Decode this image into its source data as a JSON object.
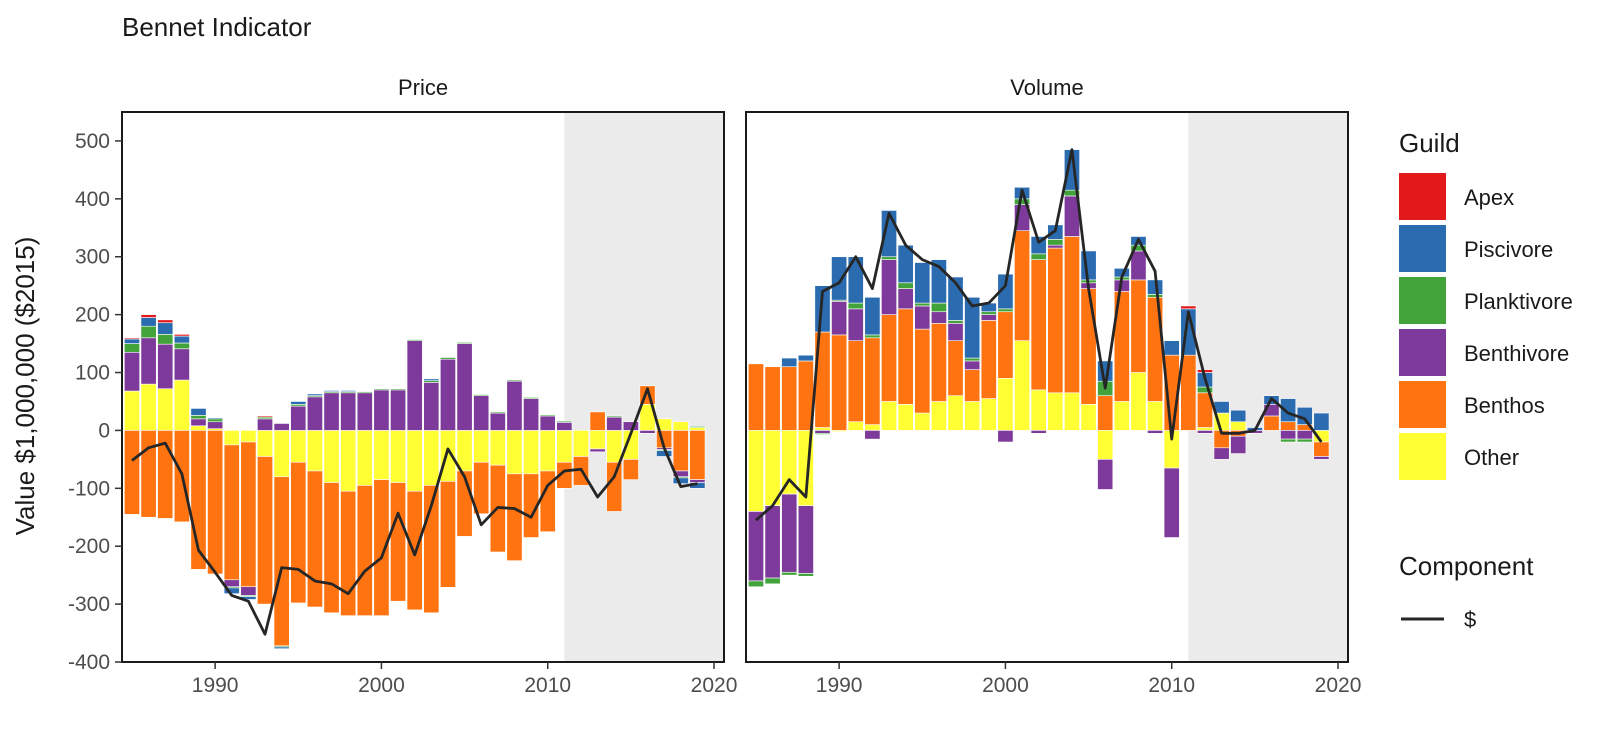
{
  "chart_data": {
    "type": "bar",
    "title": "Bennet Indicator",
    "ylabel": "Value $1,000,000 ($2015)",
    "xlabel": "",
    "ylim": [
      -400,
      550
    ],
    "xlim": [
      1984.4,
      2020.6
    ],
    "y_ticks": [
      -400,
      -300,
      -200,
      -100,
      0,
      100,
      200,
      300,
      400,
      500
    ],
    "y_tick_labels": [
      "-400",
      "-300",
      "-200",
      "-100",
      "0",
      "100",
      "200",
      "300",
      "400",
      "500"
    ],
    "x_ticks": [
      1990,
      2000,
      2010,
      2020
    ],
    "x_tick_labels": [
      "1990",
      "2000",
      "2010",
      "2020"
    ],
    "shaded_region_start": 2011,
    "guild_order": [
      "Other",
      "Benthos",
      "Benthivore",
      "Planktivore",
      "Piscivore",
      "Apex"
    ],
    "guild_colors": {
      "Apex": "#E31A1C",
      "Piscivore": "#2B6CB0",
      "Planktivore": "#41A33A",
      "Benthivore": "#7E3A9A",
      "Benthos": "#FF7410",
      "Other": "#FFFF33"
    },
    "line_color": "#262626",
    "shade_color": "#EBEBEB",
    "legend": {
      "fill_title": "Guild",
      "fill_items": [
        "Apex",
        "Piscivore",
        "Planktivore",
        "Benthivore",
        "Benthos",
        "Other"
      ],
      "line_title": "Component",
      "line_items": [
        "$"
      ]
    },
    "years": [
      1985,
      1986,
      1987,
      1988,
      1989,
      1990,
      1991,
      1992,
      1993,
      1994,
      1995,
      1996,
      1997,
      1998,
      1999,
      2000,
      2001,
      2002,
      2003,
      2004,
      2005,
      2006,
      2007,
      2008,
      2009,
      2010,
      2011,
      2012,
      2013,
      2014,
      2015,
      2016,
      2017,
      2018,
      2019
    ],
    "panels": [
      {
        "label": "Price",
        "series": [
          {
            "name": "Other",
            "values": [
              68,
              80,
              72,
              87,
              8,
              3,
              -25,
              -20,
              -45,
              -80,
              -55,
              -70,
              -90,
              -105,
              -95,
              -85,
              -90,
              -105,
              -95,
              -88,
              -70,
              -55,
              -60,
              -75,
              -75,
              -70,
              -55,
              -45,
              -32,
              -55,
              -50,
              45,
              20,
              15,
              5
            ]
          },
          {
            "name": "Benthos",
            "values": [
              -145,
              -150,
              -152,
              -158,
              -240,
              -248,
              -233,
              -250,
              -255,
              -292,
              -243,
              -235,
              -225,
              -215,
              -225,
              -235,
              -205,
              -205,
              -220,
              -183,
              -113,
              -89,
              -150,
              -150,
              -110,
              -105,
              -45,
              -50,
              32,
              -85,
              -35,
              32,
              -30,
              -70,
              -85
            ]
          },
          {
            "name": "Benthivore",
            "values": [
              67,
              80,
              77,
              54,
              12,
              12,
              -12,
              -15,
              20,
              12,
              42,
              58,
              65,
              65,
              65,
              70,
              70,
              155,
              83,
              123,
              150,
              60,
              30,
              85,
              55,
              25,
              14,
              0,
              -5,
              23,
              15,
              -5,
              -3,
              -10,
              -5
            ]
          },
          {
            "name": "Planktivore",
            "values": [
              15,
              20,
              17,
              10,
              6,
              5,
              -2,
              -2,
              3,
              -2,
              3,
              2,
              2,
              2,
              2,
              2,
              2,
              2,
              3,
              3,
              2,
              2,
              2,
              2,
              2,
              2,
              2,
              0,
              0,
              2,
              0,
              0,
              -2,
              -2,
              2
            ]
          },
          {
            "name": "Piscivore",
            "values": [
              8,
              15,
              20,
              12,
              12,
              2,
              -10,
              -5,
              0,
              -3,
              5,
              3,
              2,
              2,
              0,
              0,
              0,
              0,
              3,
              0,
              0,
              0,
              0,
              0,
              0,
              0,
              0,
              0,
              0,
              0,
              0,
              0,
              -10,
              -10,
              -10
            ]
          },
          {
            "name": "Apex",
            "values": [
              2,
              5,
              5,
              3,
              0,
              0,
              0,
              0,
              2,
              0,
              0,
              0,
              0,
              0,
              0,
              0,
              0,
              0,
              0,
              0,
              0,
              0,
              0,
              0,
              0,
              0,
              0,
              0,
              0,
              0,
              0,
              0,
              0,
              0,
              0
            ]
          }
        ],
        "line": [
          -52,
          -30,
          -22,
          -75,
          -207,
          -245,
          -285,
          -295,
          -352,
          -237,
          -240,
          -260,
          -265,
          -282,
          -243,
          -220,
          -143,
          -215,
          -130,
          -32,
          -80,
          -163,
          -133,
          -135,
          -150,
          -95,
          -70,
          -67,
          -115,
          -80,
          -5,
          72,
          -30,
          -97,
          -92
        ]
      },
      {
        "label": "Volume",
        "series": [
          {
            "name": "Other",
            "values": [
              -140,
              -130,
              -110,
              -130,
              5,
              -2,
              15,
              10,
              50,
              45,
              30,
              50,
              60,
              50,
              55,
              90,
              155,
              70,
              65,
              65,
              45,
              -50,
              50,
              100,
              50,
              -65,
              0,
              5,
              30,
              15,
              0,
              0,
              0,
              0,
              -20
            ]
          },
          {
            "name": "Benthos",
            "values": [
              115,
              110,
              110,
              120,
              165,
              165,
              140,
              150,
              150,
              165,
              145,
              135,
              95,
              55,
              135,
              115,
              190,
              225,
              250,
              270,
              200,
              60,
              190,
              160,
              180,
              130,
              130,
              60,
              -30,
              -10,
              0,
              25,
              15,
              10,
              -25
            ]
          },
          {
            "name": "Benthivore",
            "values": [
              -120,
              -125,
              -135,
              -117,
              -5,
              58,
              55,
              -15,
              95,
              35,
              40,
              20,
              30,
              15,
              10,
              -20,
              45,
              -5,
              5,
              70,
              10,
              -52,
              20,
              50,
              -5,
              -120,
              0,
              -5,
              -20,
              -30,
              -5,
              20,
              -15,
              -15,
              -5
            ]
          },
          {
            "name": "Planktivore",
            "values": [
              -10,
              -10,
              -5,
              -5,
              -2,
              2,
              10,
              5,
              5,
              10,
              5,
              15,
              5,
              5,
              5,
              5,
              10,
              10,
              10,
              10,
              5,
              25,
              5,
              10,
              5,
              0,
              0,
              10,
              0,
              0,
              0,
              0,
              -5,
              -5,
              0
            ]
          },
          {
            "name": "Piscivore",
            "values": [
              0,
              0,
              15,
              10,
              80,
              75,
              80,
              65,
              80,
              65,
              70,
              75,
              75,
              105,
              15,
              60,
              20,
              30,
              25,
              70,
              50,
              35,
              15,
              15,
              25,
              25,
              80,
              25,
              20,
              20,
              5,
              15,
              40,
              30,
              30
            ]
          },
          {
            "name": "Apex",
            "values": [
              0,
              0,
              0,
              0,
              0,
              0,
              0,
              0,
              0,
              0,
              0,
              0,
              0,
              0,
              0,
              0,
              0,
              0,
              0,
              0,
              0,
              0,
              0,
              0,
              0,
              0,
              5,
              5,
              0,
              0,
              0,
              0,
              0,
              0,
              0
            ]
          }
        ],
        "line": [
          -155,
          -130,
          -85,
          -115,
          240,
          255,
          300,
          245,
          375,
          320,
          295,
          283,
          255,
          215,
          220,
          250,
          415,
          325,
          345,
          485,
          245,
          73,
          265,
          330,
          275,
          -15,
          205,
          90,
          -5,
          -5,
          0,
          55,
          30,
          20,
          -20
        ]
      }
    ]
  }
}
